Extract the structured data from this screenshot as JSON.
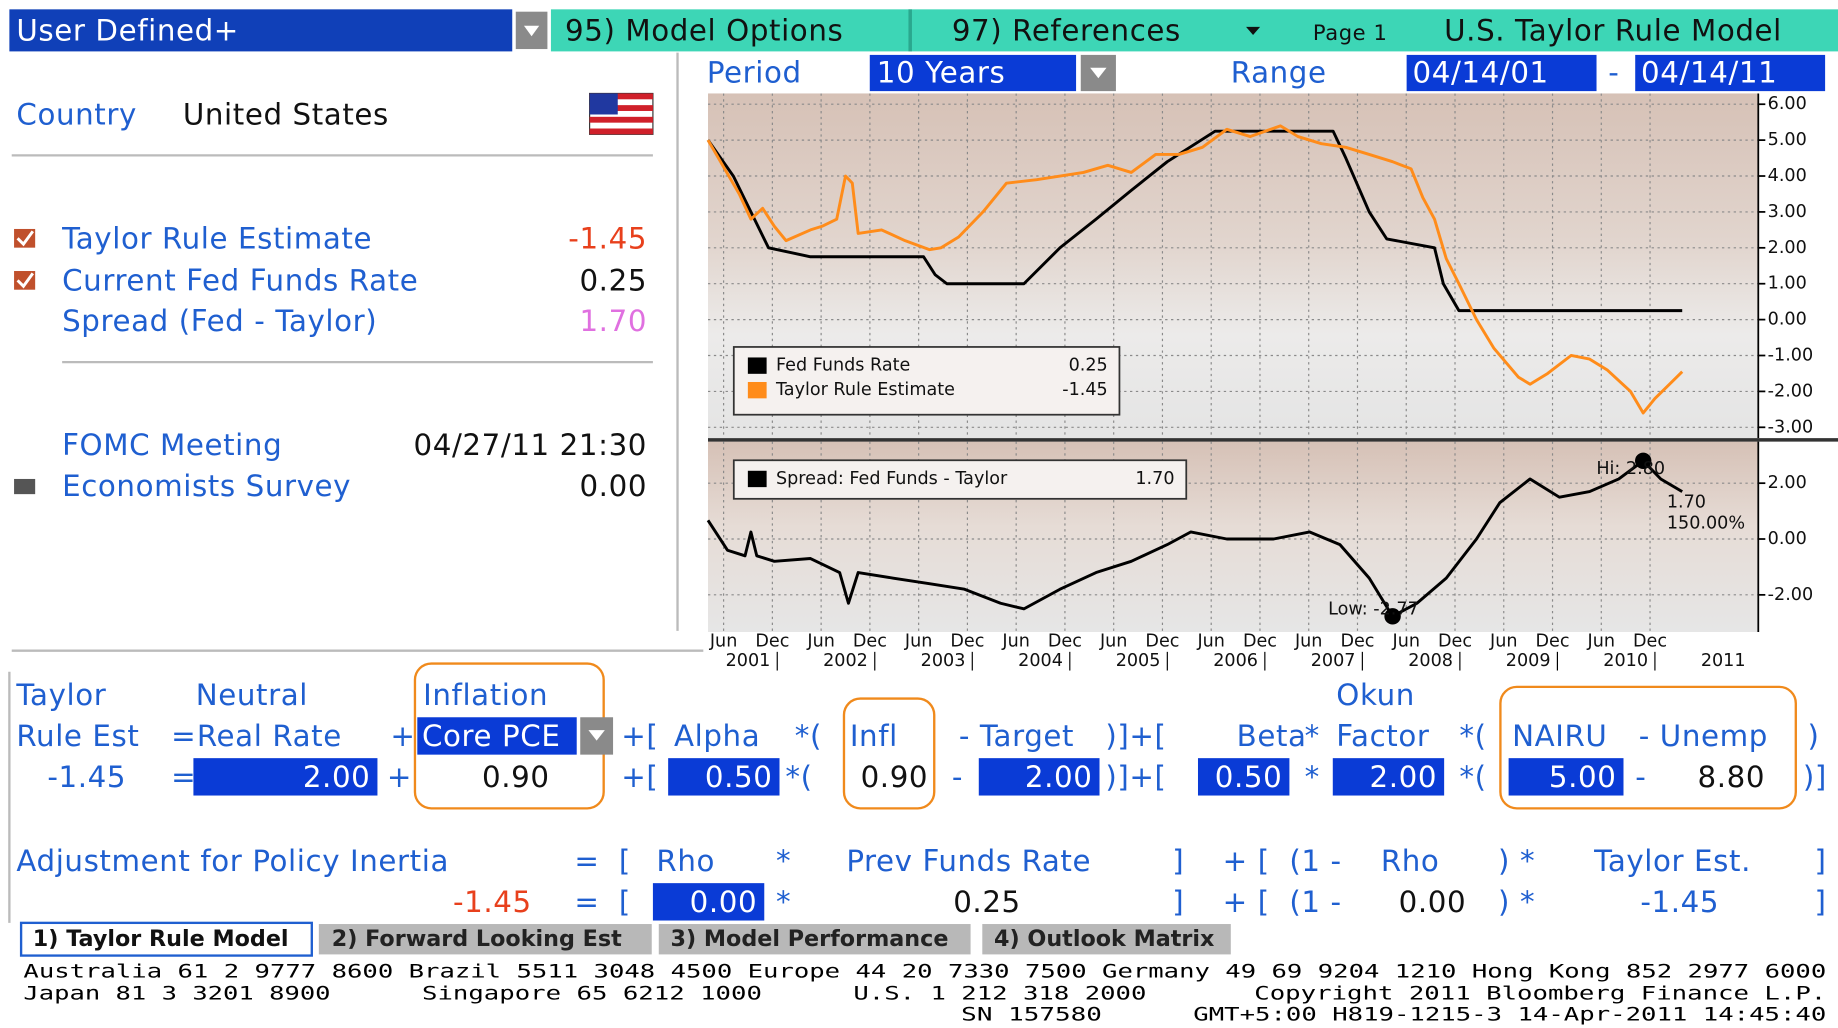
{
  "header": {
    "menu": "User Defined+",
    "model_options": "95) Model Options",
    "references": "97) References",
    "page": "Page 1",
    "title": "U.S. Taylor Rule Model"
  },
  "controls": {
    "period_label": "Period",
    "period": "10 Years",
    "range_label": "Range",
    "start": "04/14/01",
    "separator": "-",
    "end": "04/14/11"
  },
  "summary": {
    "country_label": "Country",
    "country": "United States",
    "rows": [
      {
        "label": "Taylor Rule Estimate",
        "value": "-1.45"
      },
      {
        "label": "Current Fed Funds Rate",
        "value": "0.25"
      },
      {
        "label": "Spread (Fed - Taylor)",
        "value": "1.70"
      }
    ],
    "events": [
      {
        "label": "FOMC Meeting",
        "value": "04/27/11 21:30"
      },
      {
        "label": "Economists Survey",
        "value": "0.00"
      }
    ]
  },
  "formula": {
    "rows": [
      [
        "Taylor",
        "Neutral",
        "Inflation",
        "Okun"
      ],
      [
        "Rule Est",
        "=",
        "Real Rate",
        "+",
        "Core PCE",
        "+[",
        "Alpha",
        "*(",
        "Infl",
        "- Target",
        ")]+[",
        "Beta",
        "*",
        "Factor",
        "*(",
        "NAIRU",
        "- Unemp",
        ")"
      ],
      [
        "-1.45",
        "=",
        "2.00",
        "+",
        "0.90",
        "+[",
        "0.50",
        "*(",
        "0.90",
        "-",
        "2.00",
        ")]+[",
        "0.50",
        "*",
        "2.00",
        "*(",
        "5.00",
        "-",
        "8.80",
        ")]"
      ]
    ],
    "inertia": [
      [
        "Adjustment for Policy Inertia",
        "=",
        "[",
        "Rho",
        "*",
        "Prev Funds Rate",
        "]",
        "+",
        "[",
        "(1 -",
        "Rho",
        ") *",
        "Taylor Est.",
        "]"
      ],
      [
        "-1.45",
        "=",
        "[",
        "0.00",
        "*",
        "0.25",
        "]",
        "+",
        "[",
        "(1 -",
        "0.00",
        ") *",
        "-1.45",
        "]"
      ]
    ]
  },
  "tabs": [
    "1) Taylor Rule Model",
    "2) Forward Looking Est",
    "3) Model Performance",
    "4) Outlook Matrix"
  ],
  "footer": [
    "Australia 61 2 9777 8600 Brazil 5511 3048 4500 Europe 44 20 7330 7500 Germany 49 69 9204 1210 Hong Kong 852 2977 6000",
    "Japan 81 3 3201 8900",
    "Singapore 65 6212 1000",
    "U.S. 1 212 318 2000",
    "Copyright 2011 Bloomberg Finance L.P.",
    "SN 157580",
    "GMT+5:00 H819-1215-3 14-Apr-2011 14:45:40"
  ],
  "chart_data": [
    {
      "type": "line",
      "xlim": [
        2001.29,
        2012.06
      ],
      "ylim": [
        -3.3,
        6.3
      ],
      "yticks": [
        {
          "value": 6,
          "label": "6.00"
        },
        {
          "value": 5,
          "label": "5.00"
        },
        {
          "value": 4,
          "label": "4.00"
        },
        {
          "value": 3,
          "label": "3.00"
        },
        {
          "value": 2,
          "label": "2.00"
        },
        {
          "value": 1,
          "label": "1.00"
        },
        {
          "value": 0,
          "label": "0.00"
        },
        {
          "value": -1,
          "label": "-1.00"
        },
        {
          "value": -2,
          "label": "-2.00"
        },
        {
          "value": -3,
          "label": "-3.00"
        }
      ],
      "grid": true,
      "series": [
        {
          "name": "Fed Funds Rate",
          "color": "#000000",
          "last_value_label": "0.25",
          "x": [
            2001.29,
            2001.55,
            2001.73,
            2001.91,
            2002.34,
            2003.5,
            2003.62,
            2003.74,
            2004.53,
            2004.9,
            2005.27,
            2005.63,
            2006.0,
            2006.49,
            2007.7,
            2007.83,
            2008.07,
            2008.25,
            2008.74,
            2008.83,
            2008.99,
            2011.28
          ],
          "values": [
            5.0,
            4.0,
            3.0,
            2.0,
            1.75,
            1.75,
            1.25,
            1.0,
            1.0,
            2.0,
            2.8,
            3.6,
            4.4,
            5.25,
            5.25,
            4.5,
            3.0,
            2.25,
            2.0,
            1.0,
            0.25,
            0.25
          ]
        },
        {
          "name": "Taylor Rule Estimate",
          "color": "#ff8c1a",
          "last_value_label": "-1.45",
          "x": [
            2001.29,
            2001.61,
            2001.73,
            2001.85,
            2001.97,
            2002.09,
            2002.34,
            2002.46,
            2002.61,
            2002.7,
            2002.77,
            2002.83,
            2003.07,
            2003.31,
            2003.56,
            2003.68,
            2003.86,
            2004.11,
            2004.35,
            2004.66,
            2004.9,
            2005.14,
            2005.39,
            2005.63,
            2005.88,
            2006.12,
            2006.36,
            2006.61,
            2006.85,
            2007.16,
            2007.34,
            2007.58,
            2007.83,
            2008.07,
            2008.31,
            2008.5,
            2008.62,
            2008.74,
            2008.86,
            2008.99,
            2009.17,
            2009.35,
            2009.6,
            2009.72,
            2009.9,
            2010.14,
            2010.33,
            2010.51,
            2010.75,
            2010.88,
            2011.0,
            2011.28
          ],
          "values": [
            5.0,
            3.5,
            2.8,
            3.1,
            2.6,
            2.2,
            2.5,
            2.6,
            2.8,
            4.0,
            3.8,
            2.4,
            2.5,
            2.2,
            1.95,
            2.0,
            2.3,
            3.0,
            3.8,
            3.9,
            4.0,
            4.1,
            4.3,
            4.1,
            4.6,
            4.6,
            4.8,
            5.3,
            5.1,
            5.4,
            5.1,
            4.9,
            4.8,
            4.6,
            4.4,
            4.2,
            3.4,
            2.8,
            1.7,
            1.0,
            0.0,
            -0.8,
            -1.6,
            -1.8,
            -1.5,
            -1.0,
            -1.1,
            -1.4,
            -2.0,
            -2.6,
            -2.2,
            -1.45
          ]
        }
      ]
    },
    {
      "type": "line",
      "xlim": [
        2001.29,
        2012.06
      ],
      "ylim": [
        -3.33,
        3.49
      ],
      "yticks": [
        {
          "value": 2,
          "label": "2.00"
        },
        {
          "value": 0,
          "label": "0.00"
        },
        {
          "value": -2,
          "label": "-2.00"
        }
      ],
      "grid": true,
      "xticks": [
        {
          "value": 2001.45,
          "label": "Jun"
        },
        {
          "value": 2001.95,
          "label": "Dec"
        },
        {
          "value": 2002.45,
          "label": "Jun"
        },
        {
          "value": 2002.95,
          "label": "Dec"
        },
        {
          "value": 2003.45,
          "label": "Jun"
        },
        {
          "value": 2003.95,
          "label": "Dec"
        },
        {
          "value": 2004.45,
          "label": "Jun"
        },
        {
          "value": 2004.95,
          "label": "Dec"
        },
        {
          "value": 2005.45,
          "label": "Jun"
        },
        {
          "value": 2005.95,
          "label": "Dec"
        },
        {
          "value": 2006.45,
          "label": "Jun"
        },
        {
          "value": 2006.95,
          "label": "Dec"
        },
        {
          "value": 2007.45,
          "label": "Jun"
        },
        {
          "value": 2007.95,
          "label": "Dec"
        },
        {
          "value": 2008.45,
          "label": "Jun"
        },
        {
          "value": 2008.95,
          "label": "Dec"
        },
        {
          "value": 2009.45,
          "label": "Jun"
        },
        {
          "value": 2009.95,
          "label": "Dec"
        },
        {
          "value": 2010.45,
          "label": "Jun"
        },
        {
          "value": 2010.95,
          "label": "Dec"
        }
      ],
      "year_labels": [
        2001,
        2002,
        2003,
        2004,
        2005,
        2006,
        2007,
        2008,
        2009,
        2010,
        2011
      ],
      "series": [
        {
          "name": "Spread: Fed Funds - Taylor",
          "color": "#000000",
          "last_value_label": "1.70",
          "x": [
            2001.29,
            2001.49,
            2001.67,
            2001.73,
            2001.79,
            2001.97,
            2002.34,
            2002.64,
            2002.73,
            2002.83,
            2003.19,
            2003.56,
            2003.92,
            2004.29,
            2004.53,
            2004.9,
            2005.27,
            2005.63,
            2006.0,
            2006.24,
            2006.61,
            2007.09,
            2007.46,
            2007.77,
            2008.07,
            2008.31,
            2008.56,
            2008.86,
            2009.17,
            2009.41,
            2009.72,
            2010.02,
            2010.33,
            2010.63,
            2010.88,
            2011.06,
            2011.28
          ],
          "values": [
            0.67,
            -0.4,
            -0.6,
            0.25,
            -0.6,
            -0.8,
            -0.7,
            -1.2,
            -2.3,
            -1.2,
            -1.4,
            -1.6,
            -1.8,
            -2.3,
            -2.5,
            -1.8,
            -1.2,
            -0.8,
            -0.2,
            0.25,
            0.0,
            0.0,
            0.25,
            -0.2,
            -1.4,
            -2.77,
            -2.3,
            -1.4,
            0.0,
            1.3,
            2.15,
            1.5,
            1.7,
            2.15,
            2.8,
            2.15,
            1.7
          ]
        }
      ],
      "high": {
        "x": 2010.88,
        "value": 2.8,
        "label": "Hi: 2.80"
      },
      "low": {
        "x": 2008.31,
        "value": -2.77,
        "label": "Low: -2.77"
      },
      "end_labels": [
        "1.70",
        "150.00%"
      ]
    }
  ]
}
